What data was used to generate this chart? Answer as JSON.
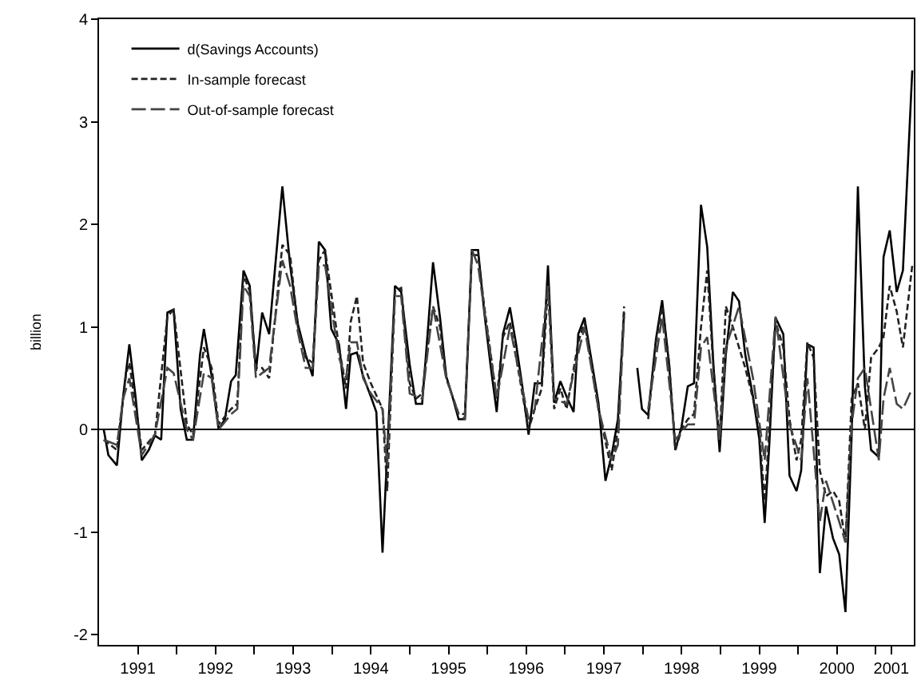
{
  "chart_data": {
    "type": "line",
    "ylabel": "billion",
    "xlim": [
      1991,
      2001.49
    ],
    "ylim": [
      -2.1,
      4
    ],
    "yticks": [
      -2,
      -1,
      0,
      1,
      2,
      3,
      4
    ],
    "xticks": [
      {
        "value": 1991.5,
        "label": "1991"
      },
      {
        "value": 1992.5,
        "label": "1992"
      },
      {
        "value": 1993.5,
        "label": "1993"
      },
      {
        "value": 1994.5,
        "label": "1994"
      },
      {
        "value": 1995.5,
        "label": "1995"
      },
      {
        "value": 1996.5,
        "label": "1996"
      },
      {
        "value": 1997.5,
        "label": "1997"
      },
      {
        "value": 1998.5,
        "label": "1998"
      },
      {
        "value": 1999.5,
        "label": "1999"
      },
      {
        "value": 2000.5,
        "label": "2000"
      },
      {
        "value": 2001.2,
        "label": "2001"
      },
      {
        "value": 1992,
        "label": null
      },
      {
        "value": 1993,
        "label": null
      },
      {
        "value": 1994,
        "label": null
      },
      {
        "value": 1995,
        "label": null
      },
      {
        "value": 1996,
        "label": null
      },
      {
        "value": 1997,
        "label": null
      },
      {
        "value": 1998,
        "label": null
      },
      {
        "value": 1999,
        "label": null
      },
      {
        "value": 2000,
        "label": null
      },
      {
        "value": 2001,
        "label": null
      }
    ],
    "grid": false,
    "legend": "top left",
    "marker": "none",
    "ref_lines": [
      {
        "axis": "y",
        "value": 0,
        "color": "#000000"
      }
    ],
    "series": [
      {
        "name": "d(Savings Accounts)",
        "color": "#000000",
        "line_style": "solid",
        "x": [
          1991.06,
          1991.12,
          1991.23,
          1991.31,
          1991.39,
          1991.47,
          1991.55,
          1991.64,
          1991.72,
          1991.8,
          1991.88,
          1991.96,
          1992.05,
          1992.13,
          1992.21,
          1992.3,
          1992.35,
          1992.45,
          1992.54,
          1992.62,
          1992.7,
          1992.76,
          1992.86,
          1992.94,
          1993.02,
          1993.1,
          1993.19,
          1993.36,
          1993.46,
          1993.56,
          1993.66,
          1993.75,
          1993.83,
          1993.91,
          1993.99,
          1994.09,
          1994.18,
          1994.24,
          1994.32,
          1994.4,
          1994.5,
          1994.57,
          1994.65,
          1994.81,
          1994.89,
          1995.0,
          1995.08,
          1995.16,
          1995.24,
          1995.3,
          1995.39,
          1995.47,
          1995.55,
          1995.63,
          1995.71,
          1995.8,
          1995.88,
          1995.96,
          1996.04,
          1996.12,
          1996.2,
          1996.29,
          1996.37,
          1996.45,
          1996.53,
          1996.61,
          1996.7,
          1996.78,
          1996.86,
          1996.94,
          1997.02,
          1997.11,
          1997.17,
          1997.25,
          1997.35,
          1997.43,
          1997.52,
          1997.6,
          1997.68,
          1997.76,
          1997.85,
          1997.93,
          1997.99,
          1998.07,
          1998.17,
          1998.25,
          1998.34,
          1998.42,
          1998.5,
          1998.58,
          1998.66,
          1998.75,
          1998.83,
          1998.91,
          1998.99,
          1999.07,
          1999.16,
          1999.24,
          1999.32,
          1999.42,
          1999.5,
          1999.57,
          1999.63,
          1999.71,
          1999.81,
          1999.89,
          1999.98,
          2000.04,
          2000.12,
          2000.2,
          2000.28,
          2000.36,
          2000.45,
          2000.53,
          2000.61,
          2000.69,
          2000.77,
          2000.86,
          2000.94,
          2001.04,
          2001.1,
          2001.18,
          2001.27,
          2001.35,
          2001.47
        ],
        "values": [
          0.0,
          -0.25,
          -0.35,
          0.32,
          0.83,
          0.32,
          -0.3,
          -0.2,
          -0.06,
          -0.1,
          1.14,
          1.17,
          0.2,
          -0.1,
          -0.1,
          0.73,
          0.98,
          0.52,
          0.0,
          0.1,
          0.47,
          0.53,
          1.55,
          1.4,
          0.57,
          1.14,
          0.93,
          2.37,
          1.6,
          1.03,
          0.73,
          0.52,
          1.83,
          1.75,
          0.98,
          0.83,
          0.2,
          0.73,
          0.75,
          0.52,
          0.32,
          0.17,
          -1.2,
          1.4,
          1.34,
          0.63,
          0.25,
          0.25,
          1.03,
          1.63,
          1.09,
          0.52,
          0.32,
          0.1,
          0.1,
          1.75,
          1.75,
          1.14,
          0.63,
          0.17,
          0.93,
          1.19,
          0.83,
          0.42,
          -0.05,
          0.45,
          0.45,
          1.6,
          0.26,
          0.47,
          0.32,
          0.17,
          0.93,
          1.09,
          0.63,
          0.26,
          -0.5,
          -0.25,
          0.1,
          1.14,
          null,
          0.6,
          0.2,
          0.14,
          0.88,
          1.26,
          0.63,
          -0.2,
          0.03,
          0.42,
          0.45,
          2.19,
          1.78,
          0.63,
          -0.22,
          0.73,
          1.34,
          1.25,
          0.73,
          0.32,
          -0.09,
          -0.91,
          -0.14,
          1.09,
          0.93,
          -0.45,
          -0.6,
          -0.4,
          0.83,
          0.8,
          -1.4,
          -0.75,
          -1.06,
          -1.22,
          -1.78,
          -0.05,
          2.37,
          0.42,
          -0.2,
          -0.27,
          1.68,
          1.94,
          1.34,
          1.55,
          3.5
        ]
      },
      {
        "name": "In-sample forecast",
        "color": "#222222",
        "line_style": "dashed",
        "x": [
          1991.06,
          1991.23,
          1991.35,
          1991.39,
          1991.55,
          1991.72,
          1991.88,
          1991.96,
          1992.13,
          1992.21,
          1992.35,
          1992.45,
          1992.54,
          1992.7,
          1992.78,
          1992.86,
          1992.94,
          1993.02,
          1993.1,
          1993.19,
          1993.36,
          1993.46,
          1993.56,
          1993.66,
          1993.75,
          1993.83,
          1993.91,
          1994.09,
          1994.18,
          1994.24,
          1994.32,
          1994.4,
          1994.5,
          1994.65,
          1994.71,
          1994.81,
          1994.89,
          1995.0,
          1995.08,
          1995.16,
          1995.24,
          1995.3,
          1995.39,
          1995.47,
          1995.63,
          1995.71,
          1995.8,
          1995.88,
          1995.96,
          1996.12,
          1996.2,
          1996.29,
          1996.37,
          1996.53,
          1996.61,
          1996.7,
          1996.78,
          1996.86,
          1996.94,
          1997.02,
          1997.17,
          1997.25,
          1997.43,
          1997.6,
          1997.68,
          1997.76,
          1997.85,
          1998.07,
          1998.17,
          1998.25,
          1998.34,
          1998.42,
          1998.5,
          1998.58,
          1998.66,
          1998.75,
          1998.83,
          1998.91,
          1998.99,
          1999.07,
          1999.16,
          1999.32,
          1999.42,
          1999.5,
          1999.57,
          1999.63,
          1999.71,
          1999.81,
          1999.89,
          1999.98,
          2000.04,
          2000.12,
          2000.2,
          2000.28,
          2000.36,
          2000.45,
          2000.53,
          2000.61,
          2000.69,
          2000.77,
          2000.86,
          2000.94,
          2001.04,
          2001.1,
          2001.18,
          2001.27,
          2001.35,
          2001.47
        ],
        "values": [
          -0.1,
          -0.2,
          0.55,
          0.65,
          -0.2,
          -0.05,
          1.1,
          1.17,
          0.05,
          -0.05,
          0.8,
          0.6,
          0.05,
          0.2,
          0.25,
          1.5,
          1.35,
          0.6,
          0.6,
          0.5,
          1.8,
          1.7,
          1.0,
          0.7,
          0.65,
          1.65,
          1.75,
          0.8,
          0.4,
          1.05,
          1.3,
          0.65,
          0.45,
          0.2,
          -0.6,
          1.35,
          1.38,
          0.45,
          0.3,
          0.35,
          0.85,
          1.2,
          1.0,
          0.5,
          0.15,
          0.15,
          1.7,
          1.7,
          1.2,
          0.3,
          0.9,
          1.05,
          0.7,
          0.0,
          0.2,
          0.4,
          1.4,
          0.2,
          0.4,
          0.2,
          0.85,
          1.05,
          0.2,
          -0.4,
          0.0,
          1.2,
          null,
          0.1,
          0.85,
          1.2,
          0.65,
          -0.2,
          0.0,
          0.1,
          0.15,
          1.0,
          1.55,
          0.6,
          -0.1,
          1.2,
          1.0,
          0.6,
          0.3,
          0.0,
          -0.7,
          0.0,
          1.05,
          0.8,
          0.1,
          -0.3,
          -0.1,
          0.85,
          0.7,
          -0.4,
          -0.65,
          -0.6,
          -0.7,
          -1.1,
          0.3,
          0.45,
          0.0,
          0.7,
          0.8,
          0.9,
          1.4,
          1.15,
          0.8,
          1.6
        ]
      },
      {
        "name": "Out-of-sample forecast",
        "color": "#444444",
        "line_style": "dashed",
        "x": [
          1991.06,
          1991.23,
          1991.31,
          1991.39,
          1991.55,
          1991.72,
          1991.88,
          1991.96,
          1992.13,
          1992.21,
          1992.35,
          1992.45,
          1992.54,
          1992.7,
          1992.78,
          1992.86,
          1992.94,
          1993.02,
          1993.1,
          1993.19,
          1993.36,
          1993.46,
          1993.56,
          1993.66,
          1993.75,
          1993.83,
          1993.91,
          1994.09,
          1994.18,
          1994.24,
          1994.32,
          1994.4,
          1994.5,
          1994.65,
          1994.71,
          1994.81,
          1994.89,
          1995.0,
          1995.16,
          1995.3,
          1995.47,
          1995.63,
          1995.71,
          1995.8,
          1995.88,
          1996.12,
          1996.29,
          1996.53,
          1996.61,
          1996.78,
          1996.86,
          1997.02,
          1997.25,
          1997.43,
          1997.6,
          1997.68,
          1997.76,
          1997.85,
          1998.07,
          1998.25,
          1998.42,
          1998.58,
          1998.66,
          1998.75,
          1998.83,
          1998.99,
          1999.07,
          1999.24,
          1999.42,
          1999.57,
          1999.71,
          1999.89,
          2000.04,
          2000.12,
          2000.28,
          2000.36,
          2000.53,
          2000.61,
          2000.69,
          2000.77,
          2000.86,
          2001.04,
          2001.1,
          2001.18,
          2001.27,
          2001.35,
          2001.47
        ],
        "values": [
          -0.1,
          -0.15,
          0.3,
          0.5,
          -0.25,
          -0.05,
          0.6,
          0.55,
          0.0,
          -0.1,
          0.55,
          0.5,
          0.0,
          0.15,
          0.2,
          1.4,
          1.3,
          0.5,
          0.55,
          0.6,
          1.65,
          1.4,
          0.95,
          0.6,
          0.6,
          1.6,
          1.6,
          0.7,
          0.5,
          0.85,
          0.85,
          0.5,
          0.35,
          0.2,
          -0.35,
          1.3,
          1.3,
          0.35,
          0.3,
          1.2,
          0.5,
          0.15,
          0.1,
          1.75,
          1.6,
          0.3,
          1.0,
          0.1,
          0.2,
          1.4,
          0.3,
          0.25,
          1.0,
          0.2,
          -0.3,
          -0.15,
          1.1,
          null,
          0.2,
          1.1,
          -0.1,
          0.05,
          0.05,
          0.8,
          0.9,
          -0.1,
          0.8,
          1.2,
          0.5,
          -0.3,
          1.1,
          0.05,
          -0.3,
          0.5,
          -0.9,
          -0.5,
          -0.9,
          -1.1,
          0.05,
          0.5,
          0.6,
          -0.3,
          0.3,
          0.6,
          0.25,
          0.2,
          0.4
        ]
      }
    ]
  }
}
